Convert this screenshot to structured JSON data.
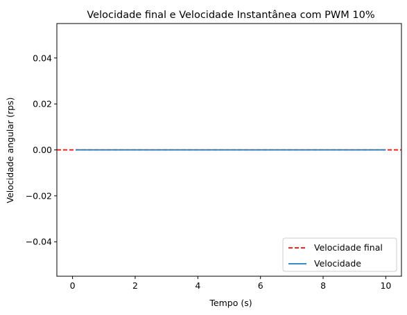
{
  "chart_data": {
    "type": "line",
    "title": "Velocidade final e Velocidade Instantânea com PWM 10%",
    "xlabel": "Tempo (s)",
    "ylabel": "Velocidade angular (rps)",
    "xlim": [
      -0.5,
      10.5
    ],
    "ylim": [
      -0.055,
      0.055
    ],
    "xticks": [
      0,
      2,
      4,
      6,
      8,
      10
    ],
    "xtick_labels": [
      "0",
      "2",
      "4",
      "6",
      "8",
      "10"
    ],
    "yticks": [
      0.04,
      0.02,
      0.0,
      -0.02,
      -0.04
    ],
    "ytick_labels": [
      "0.04",
      "0.02",
      "0.00",
      "−0.02",
      "−0.04"
    ],
    "grid": false,
    "legend_position": "bottom-right",
    "series": [
      {
        "name": "Velocidade final",
        "style": "dashed",
        "color": "#ff0000",
        "kind": "hline",
        "y": 0.0
      },
      {
        "name": "Velocidade",
        "style": "solid",
        "color": "#1f77b4",
        "kind": "line",
        "x": [
          0.1,
          10
        ],
        "y": [
          0.0,
          0.0
        ]
      }
    ]
  }
}
